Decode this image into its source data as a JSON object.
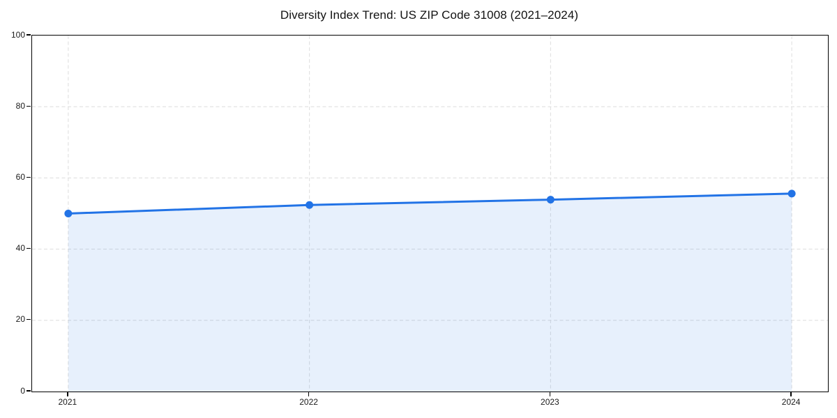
{
  "page": {
    "background": "#ffffff"
  },
  "chart_data": {
    "type": "area",
    "title": "Diversity Index Trend: US ZIP Code 31008 (2021–2024)",
    "categories": [
      "2021",
      "2022",
      "2023",
      "2024"
    ],
    "x": [
      2021,
      2022,
      2023,
      2024
    ],
    "values": [
      50,
      52.4,
      53.9,
      55.6
    ],
    "series": [
      {
        "name": "Diversity Index",
        "values": [
          50,
          52.4,
          53.9,
          55.6
        ]
      }
    ],
    "xlabel": "",
    "ylabel": "",
    "ylim": [
      0,
      100
    ],
    "yticks": [
      0,
      20,
      40,
      60,
      80,
      100
    ],
    "grid": "dashed, horizontal and vertical",
    "legend": "none",
    "marker": "circle",
    "colors": {
      "line": "#2273e6",
      "marker": "#2273e6",
      "fill": "#2273e6",
      "fill_opacity": 0.11,
      "grid": "#e0e0e0",
      "axis": "#000000",
      "text": "#1a1a1a",
      "background": "#ffffff"
    }
  }
}
